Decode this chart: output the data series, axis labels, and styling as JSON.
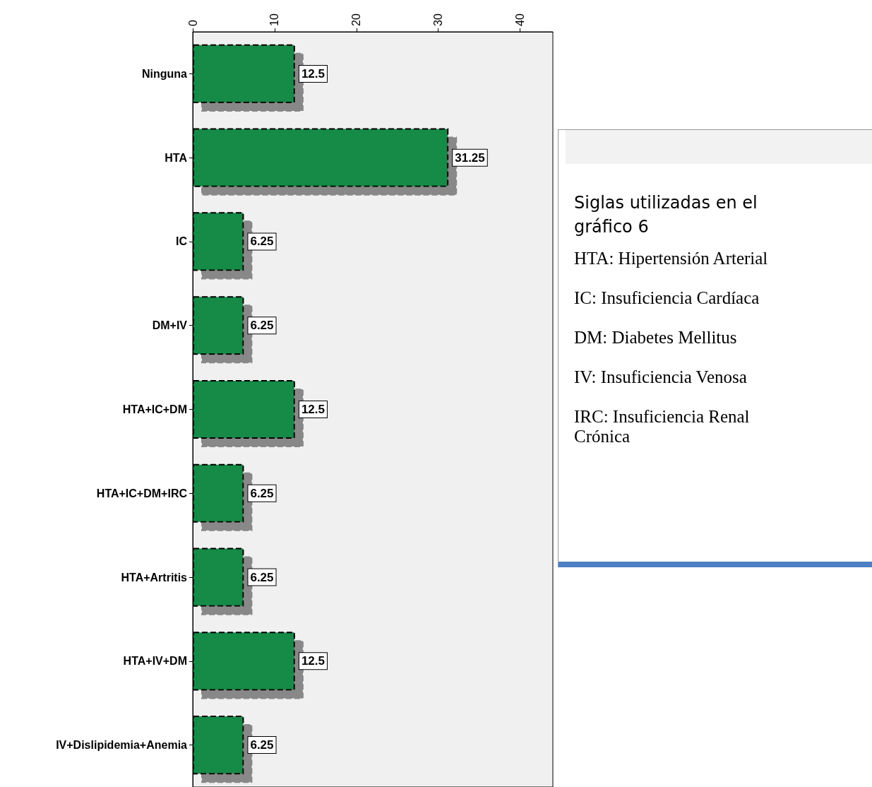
{
  "chart_data": {
    "type": "bar",
    "orientation": "horizontal",
    "categories": [
      "Ninguna",
      "HTA",
      "IC",
      "DM+IV",
      "HTA+IC+DM",
      "HTA+IC+DM+IRC",
      "HTA+Artritis",
      "HTA+IV+DM",
      "IV+Dislipidemia+Anemia"
    ],
    "values": [
      12.5,
      31.25,
      6.25,
      6.25,
      12.5,
      6.25,
      6.25,
      12.5,
      6.25
    ],
    "color": "#138a47",
    "xlim": [
      0,
      44
    ],
    "xticks": [
      0,
      10,
      20,
      30,
      40
    ],
    "grid": false,
    "data_labels": true,
    "annotations": [
      "Siglas utilizadas en el gráfico 6",
      "HTA: Hipertensión Arterial",
      "IC: Insuficiencia Cardíaca",
      "DM: Diabetes Mellitus",
      "IV: Insuficiencia Venosa",
      "IRC: Insuficiencia Renal Crónica"
    ]
  }
}
